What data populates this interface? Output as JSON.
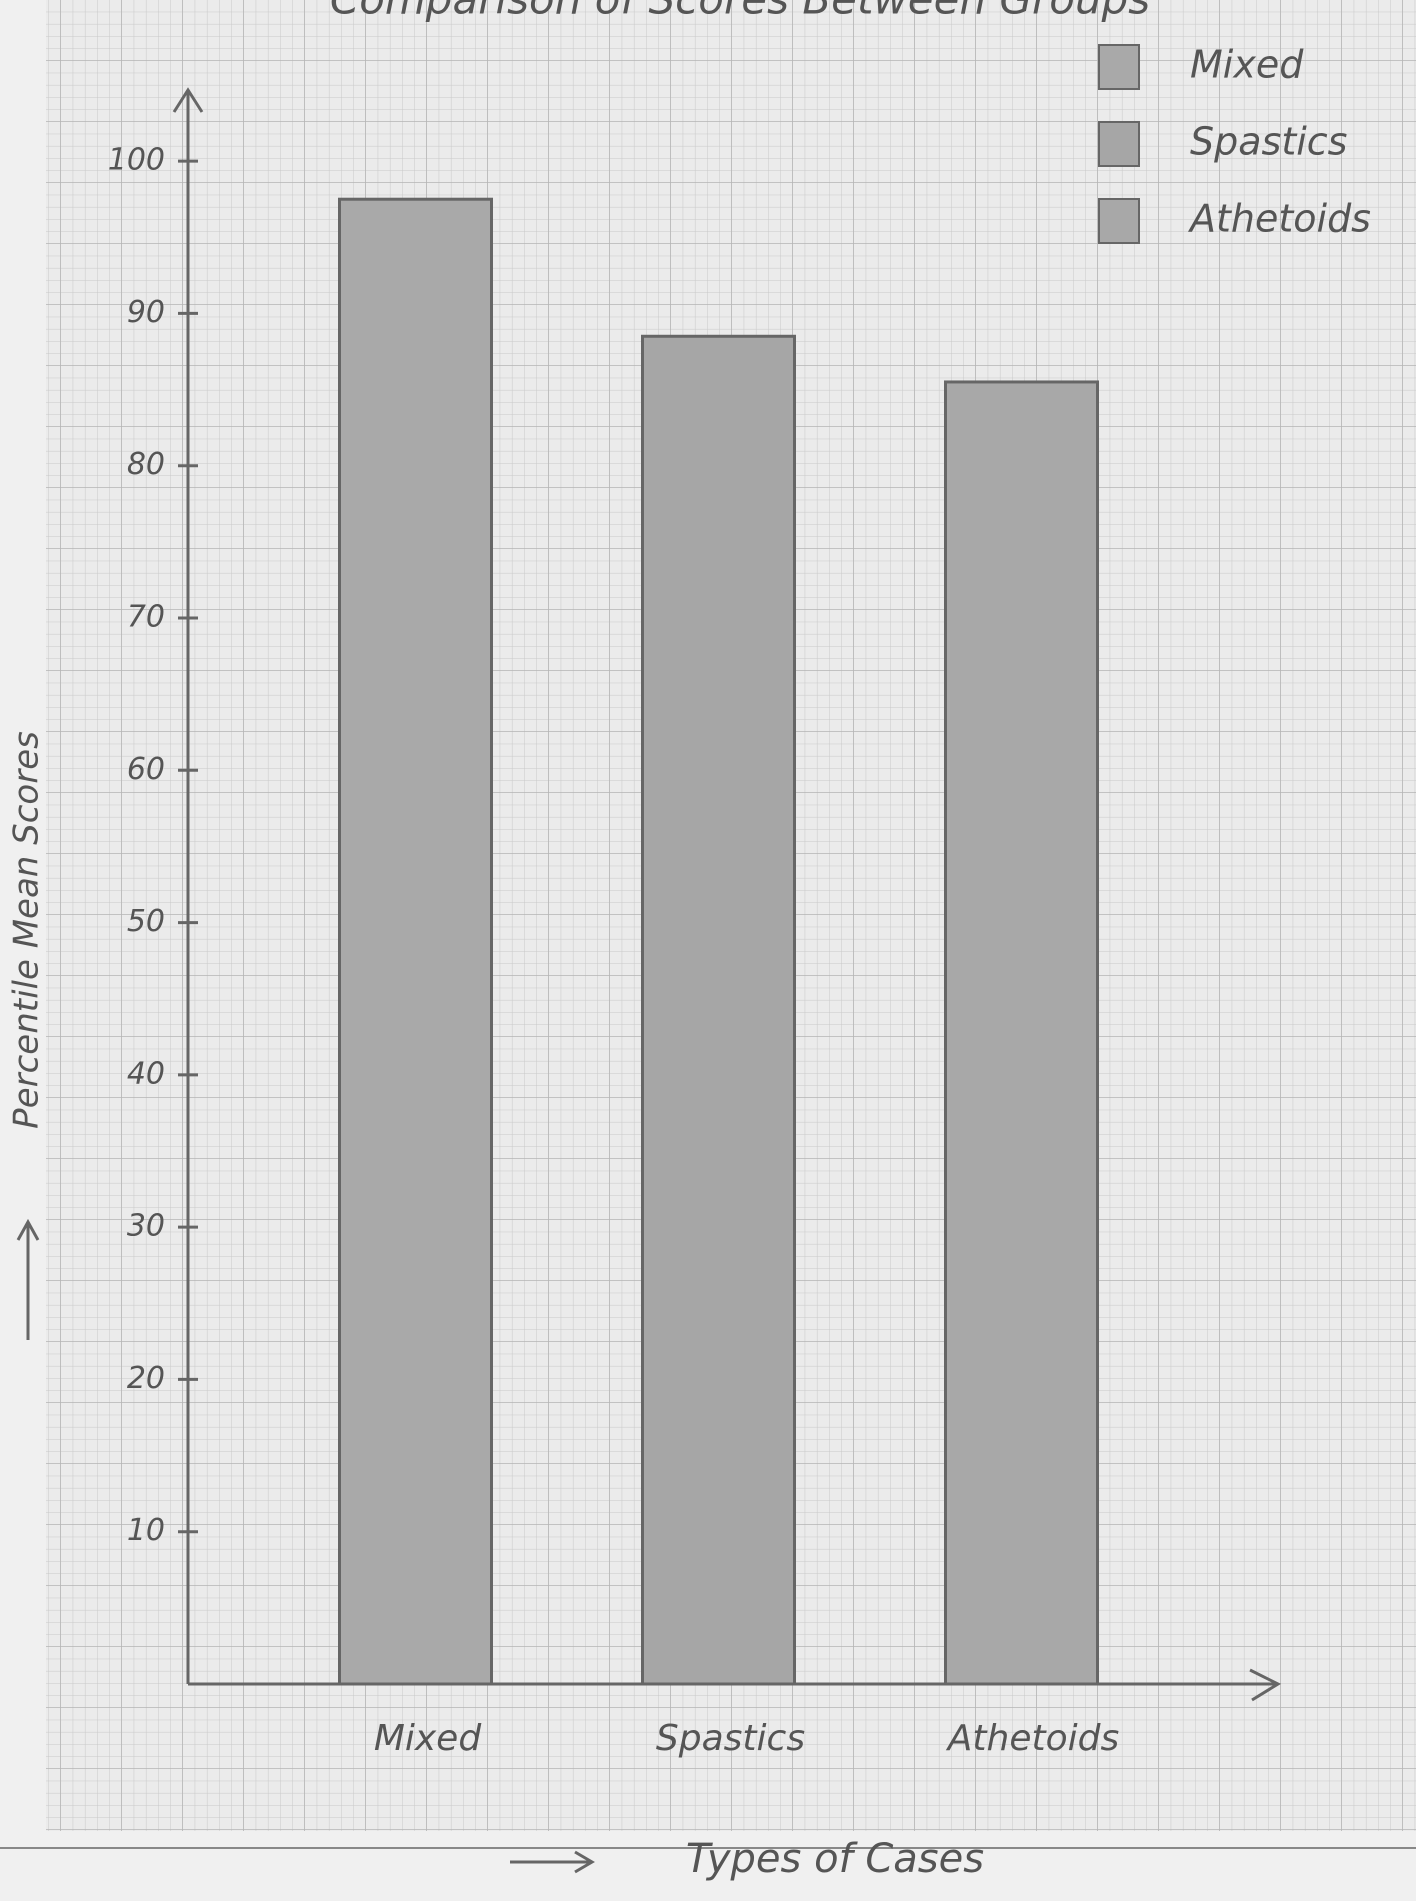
{
  "chart_data": {
    "type": "bar",
    "title": "Comparison of Scores Between Groups",
    "x_label": "Types of Cases",
    "y_label": "Percentile Mean Scores",
    "categories": [
      "Mixed",
      "Spastics",
      "Athetoids"
    ],
    "values": [
      97.5,
      88.5,
      85.5
    ],
    "colors": [
      "#a9a9a9",
      "#a6a6a6",
      "#a8a8a8"
    ],
    "ylim": [
      0,
      105
    ],
    "yticks": [
      10,
      20,
      30,
      40,
      50,
      60,
      70,
      80,
      90,
      100
    ],
    "legend": "top-right"
  }
}
